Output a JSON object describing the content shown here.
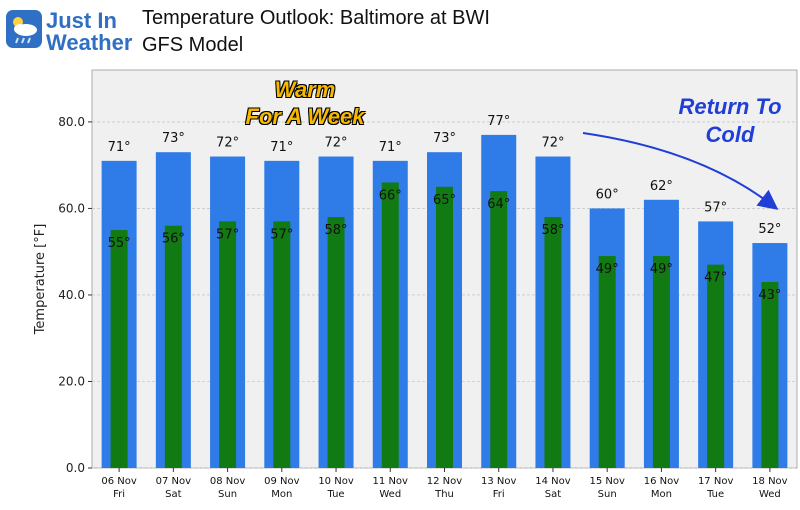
{
  "logo": {
    "line1": "Just In",
    "line2": "Weather"
  },
  "colors": {
    "high_bar": "#2f7be8",
    "low_bar": "#127a12",
    "plot_bg": "#f0f0f0",
    "warm_text": "#f6b800",
    "cold_text": "#1f3fd6"
  },
  "chart_data": {
    "type": "bar",
    "title": "Temperature Outlook: Baltimore at BWI",
    "subtitle": "GFS Model",
    "xlabel": "",
    "ylabel": "Temperature [°F]",
    "ylim": [
      0,
      92
    ],
    "yticks": [
      "0.0",
      "20.0",
      "40.0",
      "60.0",
      "80.0"
    ],
    "grid": true,
    "categories": [
      "06 Nov\nFri",
      "07 Nov\nSat",
      "08 Nov\nSun",
      "09 Nov\nMon",
      "10 Nov\nTue",
      "11 Nov\nWed",
      "12 Nov\nThu",
      "13 Nov\nFri",
      "14 Nov\nSat",
      "15 Nov\nSun",
      "16 Nov\nMon",
      "17 Nov\nTue",
      "18 Nov\nWed"
    ],
    "series": [
      {
        "values": [
          71,
          73,
          72,
          71,
          72,
          71,
          73,
          77,
          72,
          60,
          62,
          57,
          52
        ]
      },
      {
        "values": [
          55,
          56,
          57,
          57,
          58,
          66,
          65,
          64,
          58,
          49,
          49,
          47,
          43
        ]
      }
    ],
    "annotations": [
      {
        "text": "Warm\nFor A Week"
      },
      {
        "text": "Return To\nCold"
      }
    ]
  }
}
